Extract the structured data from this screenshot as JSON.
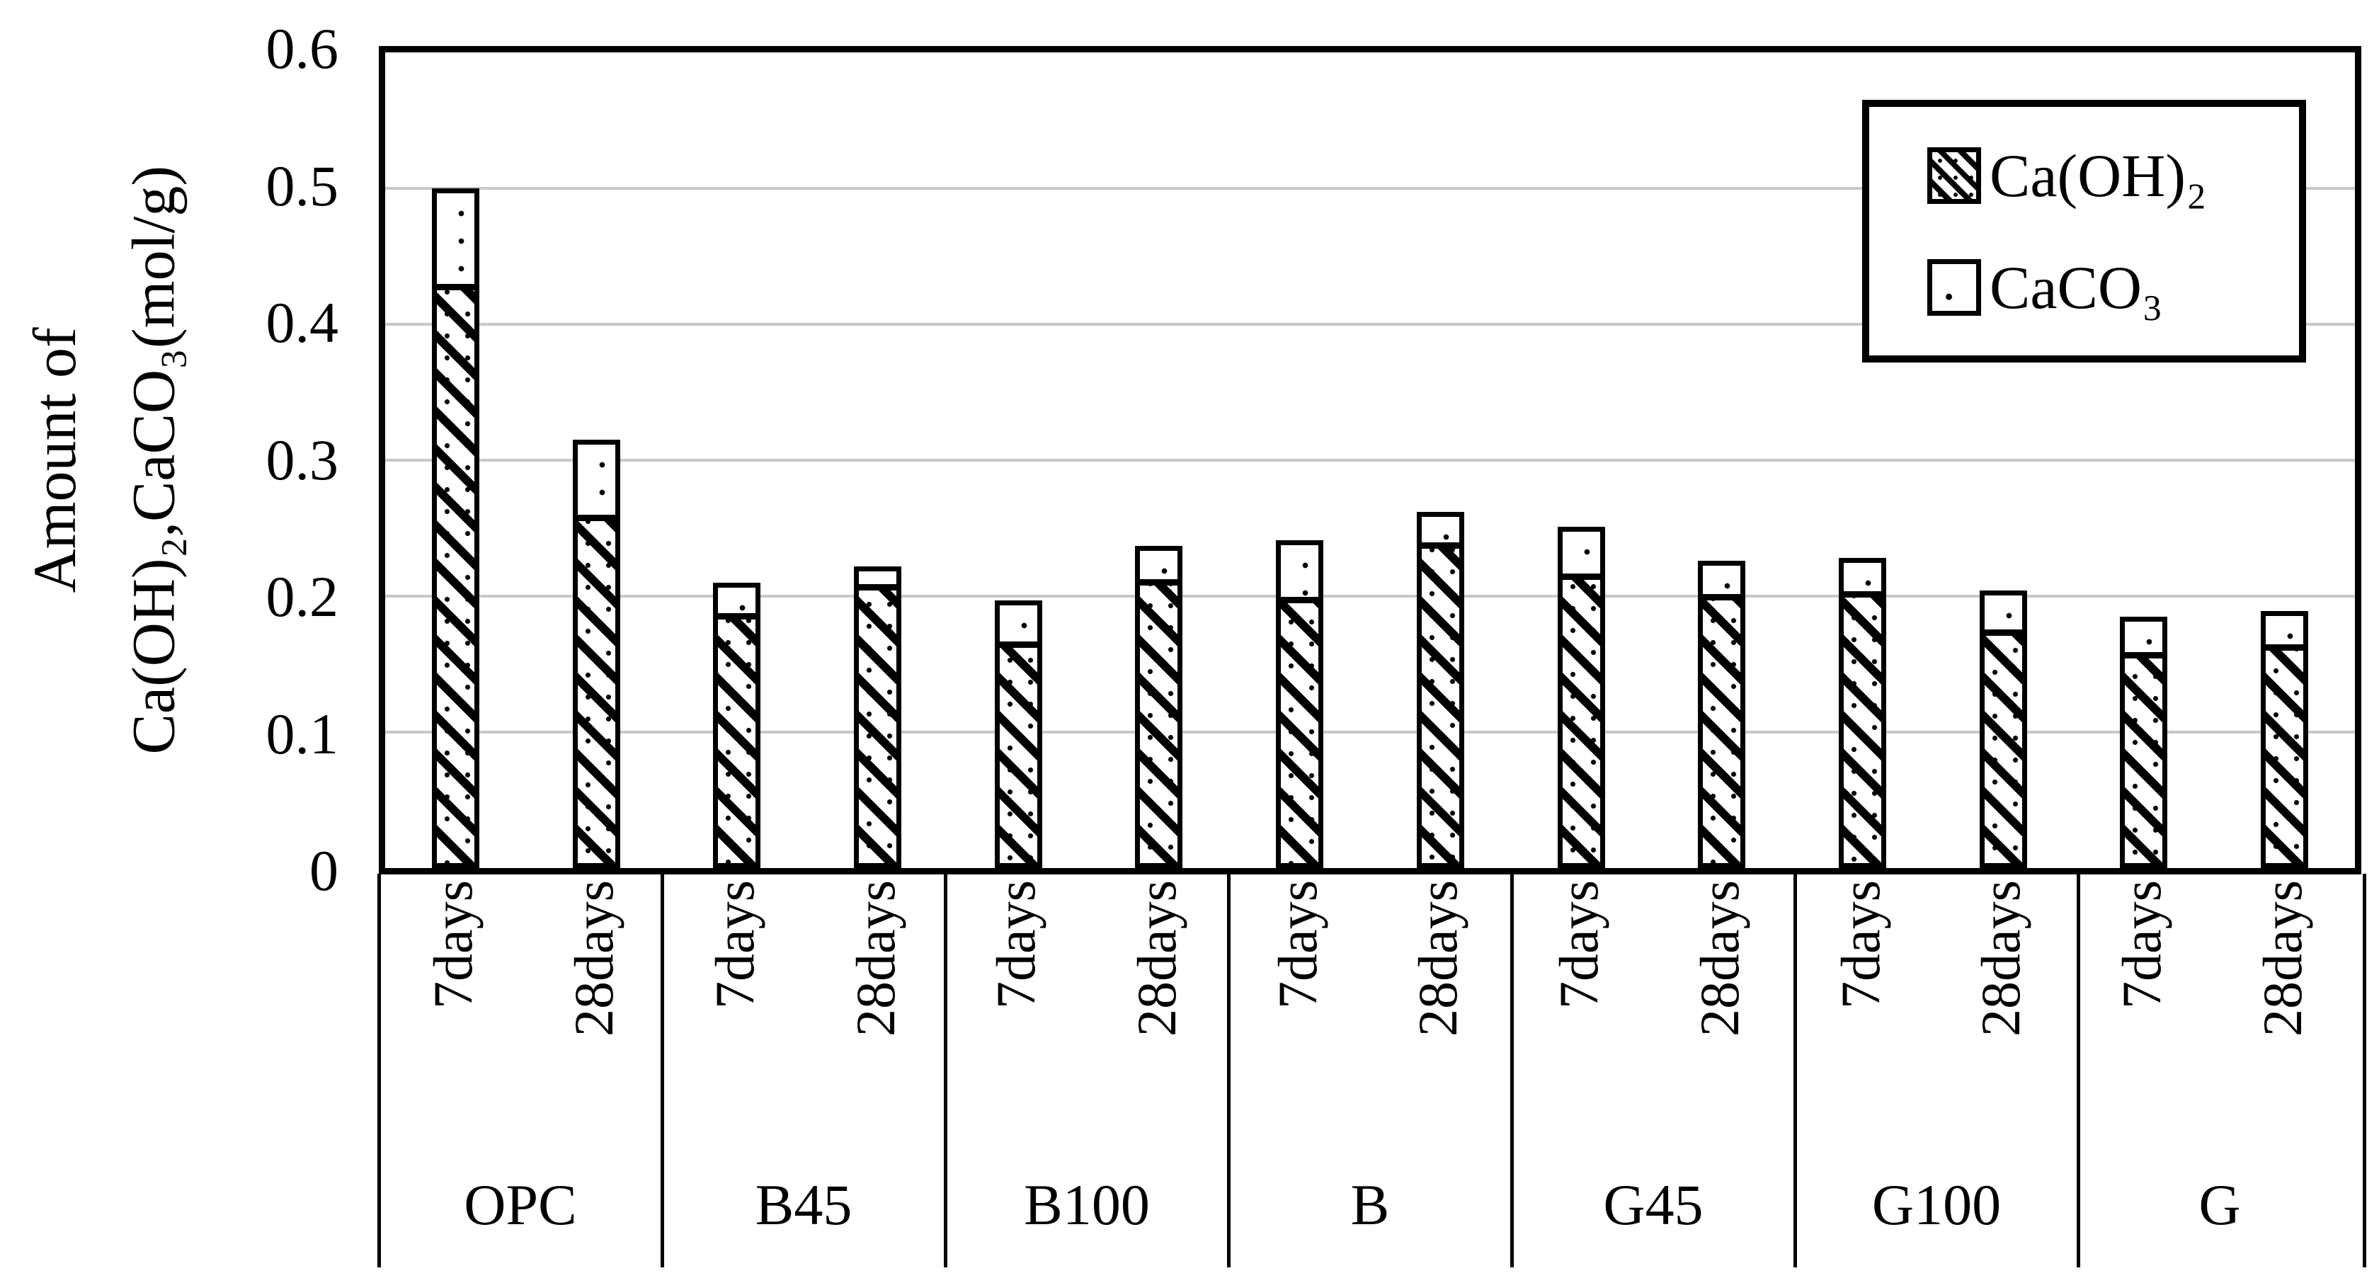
{
  "chart_data": {
    "type": "bar",
    "stacked": true,
    "title": "",
    "ylabel_line1": "Amount of",
    "ylabel_line2": "Ca(OH)₂,CaCO₃(mol/g)",
    "ylim": [
      0,
      0.6
    ],
    "yticks": [
      0,
      0.1,
      0.2,
      0.3,
      0.4,
      0.5,
      0.6
    ],
    "ytick_labels": [
      "0",
      "0.1",
      "0.2",
      "0.3",
      "0.4",
      "0.5",
      "0.6"
    ],
    "grid": "horizontal",
    "legend_position": "top-right-inside",
    "groups": [
      "OPC",
      "B45",
      "B100",
      "B",
      "G45",
      "G100",
      "G"
    ],
    "conditions": [
      "7days",
      "28days"
    ],
    "categories": [
      "OPC 7days",
      "OPC 28days",
      "B45 7days",
      "B45 28days",
      "B100 7days",
      "B100 28days",
      "B 7days",
      "B 28days",
      "G45 7days",
      "G45 28days",
      "G100 7days",
      "G100 28days",
      "G 7days",
      "G 28days"
    ],
    "series": [
      {
        "name": "Ca(OH)₂",
        "pattern": "dashed-diagonal-hatch",
        "values": [
          0.425,
          0.255,
          0.183,
          0.204,
          0.162,
          0.208,
          0.195,
          0.235,
          0.212,
          0.197,
          0.199,
          0.171,
          0.154,
          0.16
        ]
      },
      {
        "name": "CaCO₃",
        "pattern": "sparse-dots-white",
        "values": [
          0.075,
          0.06,
          0.027,
          0.018,
          0.035,
          0.029,
          0.046,
          0.027,
          0.039,
          0.029,
          0.029,
          0.033,
          0.031,
          0.029
        ]
      }
    ],
    "stack_totals": [
      0.5,
      0.315,
      0.21,
      0.222,
      0.197,
      0.237,
      0.241,
      0.262,
      0.251,
      0.226,
      0.228,
      0.204,
      0.185,
      0.189
    ]
  },
  "colors": {
    "foreground": "#000000",
    "background": "#ffffff",
    "gridline": "#c8c8c8"
  }
}
